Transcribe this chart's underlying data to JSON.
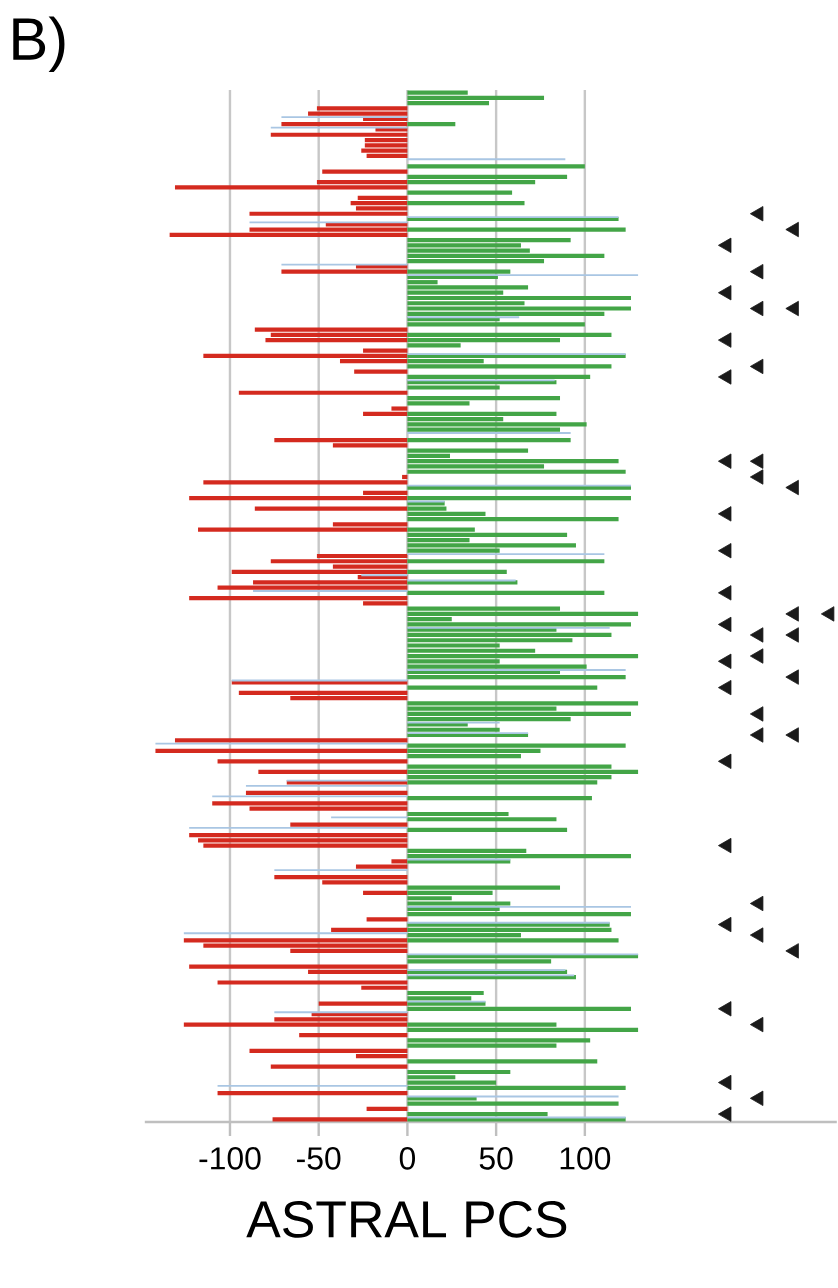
{
  "chart_data": {
    "type": "bar",
    "orientation": "horizontal",
    "title": "B)",
    "xlabel": "ASTRAL PCS",
    "xlim": [
      -148,
      242
    ],
    "xticks": [
      -100,
      -50,
      0,
      50,
      100
    ],
    "grid": "x",
    "categories": [
      null,
      null,
      null,
      null,
      null,
      null,
      null,
      null,
      null,
      null,
      null,
      null,
      null,
      null,
      null,
      null,
      null,
      null,
      null,
      null,
      null,
      null,
      null,
      null,
      null,
      null,
      null,
      null,
      null,
      null,
      null,
      null,
      null,
      null,
      null,
      null,
      null,
      null,
      null,
      null,
      null,
      null,
      null,
      null,
      null,
      null,
      null,
      null,
      null,
      null,
      null,
      null,
      null,
      null,
      null,
      null,
      null,
      null,
      null,
      null,
      null,
      null,
      null,
      null,
      null,
      null,
      null,
      null,
      null,
      null,
      null,
      null,
      null,
      null,
      null,
      null,
      null,
      null,
      null,
      null,
      null,
      null,
      null,
      null,
      null,
      null,
      null,
      null,
      null,
      null,
      null,
      null,
      null,
      null,
      null,
      null,
      null,
      null,
      null,
      null,
      null,
      null,
      null,
      null,
      null,
      null,
      null,
      null,
      null,
      null,
      null,
      null,
      null,
      null,
      null,
      null,
      null,
      null,
      null,
      null,
      null,
      null,
      null,
      null,
      null,
      null,
      null,
      null,
      null,
      null,
      null,
      null,
      null,
      null,
      null,
      null,
      null,
      null,
      null,
      null,
      null,
      null,
      null,
      null,
      null,
      null,
      null,
      null,
      null,
      null,
      null,
      null,
      null,
      null,
      null,
      null,
      null,
      null,
      null,
      null,
      null,
      null,
      null,
      null,
      null,
      null,
      null,
      null,
      null,
      null,
      null,
      null,
      null,
      null,
      null,
      null,
      null,
      null,
      null,
      null,
      null,
      null,
      null,
      null,
      null,
      null,
      null,
      null,
      null,
      null,
      null,
      null,
      null,
      null,
      null,
      null
    ],
    "series": [
      {
        "color": "#d42a1f",
        "values": [
          null,
          null,
          null,
          -51,
          -56,
          -25,
          -71,
          -18,
          -77,
          -24,
          -24,
          -26,
          -23,
          null,
          null,
          -48,
          null,
          -51,
          -131,
          null,
          -28,
          -32,
          -29,
          -89,
          null,
          -46,
          -89,
          -134,
          null,
          null,
          null,
          null,
          null,
          -29,
          -71,
          null,
          null,
          null,
          null,
          null,
          null,
          null,
          null,
          null,
          null,
          -86,
          -77,
          -80,
          null,
          -25,
          -115,
          -38,
          null,
          -30,
          null,
          null,
          null,
          -95,
          null,
          null,
          -9,
          -25,
          null,
          null,
          null,
          null,
          -75,
          -42,
          null,
          null,
          null,
          null,
          null,
          -3,
          -115,
          null,
          -25,
          -123,
          null,
          -86,
          null,
          null,
          -42,
          -118,
          null,
          null,
          null,
          null,
          -51,
          -77,
          -42,
          -99,
          -28,
          -87,
          -107,
          null,
          -123,
          -25,
          null,
          null,
          null,
          null,
          null,
          null,
          null,
          null,
          null,
          null,
          null,
          null,
          null,
          null,
          -99,
          null,
          -95,
          -66,
          null,
          null,
          null,
          null,
          null,
          null,
          null,
          -131,
          null,
          -142,
          null,
          -107,
          null,
          -84,
          null,
          -68,
          null,
          -91,
          null,
          -110,
          -89,
          null,
          null,
          -66,
          null,
          -123,
          -118,
          -115,
          null,
          null,
          -9,
          -29,
          null,
          -75,
          -48,
          null,
          -25,
          null,
          null,
          null,
          null,
          -23,
          null,
          -43,
          null,
          -126,
          -115,
          -66,
          null,
          null,
          -123,
          -56,
          null,
          -107,
          -26,
          null,
          null,
          -50,
          null,
          -54,
          -75,
          -126,
          null,
          -61,
          null,
          null,
          -89,
          -29,
          null,
          -77,
          null,
          null,
          null,
          null,
          -107,
          null,
          null,
          -23,
          null,
          -76
        ]
      },
      {
        "color": "#43a547",
        "values": [
          34,
          77,
          46,
          null,
          null,
          null,
          27,
          null,
          null,
          null,
          null,
          null,
          null,
          null,
          100,
          null,
          90,
          72,
          null,
          59,
          null,
          66,
          null,
          null,
          119,
          null,
          123,
          null,
          92,
          64,
          69,
          111,
          77,
          null,
          58,
          51,
          17,
          68,
          54,
          126,
          66,
          126,
          111,
          52,
          100,
          null,
          115,
          86,
          30,
          null,
          123,
          43,
          115,
          null,
          103,
          84,
          52,
          null,
          86,
          35,
          null,
          84,
          54,
          101,
          86,
          null,
          92,
          null,
          68,
          24,
          119,
          77,
          123,
          null,
          null,
          126,
          null,
          126,
          21,
          22,
          44,
          119,
          null,
          38,
          90,
          35,
          95,
          52,
          null,
          111,
          null,
          56,
          null,
          62,
          null,
          111,
          null,
          null,
          86,
          130,
          25,
          126,
          84,
          115,
          93,
          52,
          72,
          130,
          52,
          101,
          86,
          123,
          null,
          107,
          null,
          null,
          130,
          84,
          126,
          92,
          34,
          52,
          68,
          null,
          123,
          75,
          64,
          null,
          115,
          130,
          115,
          107,
          null,
          null,
          104,
          null,
          null,
          57,
          84,
          null,
          90,
          null,
          null,
          null,
          67,
          126,
          58,
          null,
          null,
          null,
          null,
          86,
          48,
          25,
          58,
          52,
          126,
          null,
          114,
          115,
          64,
          119,
          null,
          null,
          130,
          81,
          null,
          90,
          95,
          null,
          null,
          43,
          36,
          44,
          126,
          null,
          null,
          84,
          130,
          null,
          103,
          84,
          null,
          null,
          107,
          null,
          58,
          27,
          50,
          123,
          null,
          39,
          119,
          null,
          79,
          123
        ]
      },
      {
        "color": "#a9c6e3",
        "values": [
          null,
          null,
          null,
          null,
          null,
          -71,
          null,
          -77,
          null,
          null,
          null,
          null,
          null,
          89,
          null,
          null,
          null,
          null,
          null,
          null,
          null,
          null,
          null,
          null,
          119,
          -89,
          null,
          null,
          null,
          null,
          null,
          null,
          null,
          -71,
          null,
          130,
          null,
          null,
          null,
          null,
          null,
          null,
          null,
          63,
          null,
          null,
          null,
          null,
          null,
          null,
          123,
          null,
          null,
          null,
          null,
          83,
          null,
          null,
          null,
          null,
          null,
          null,
          null,
          null,
          null,
          92,
          null,
          null,
          null,
          null,
          null,
          null,
          null,
          null,
          null,
          126,
          null,
          null,
          21,
          null,
          null,
          null,
          null,
          null,
          null,
          null,
          null,
          null,
          111,
          null,
          null,
          null,
          -26,
          61,
          null,
          -87,
          null,
          null,
          null,
          null,
          null,
          null,
          114,
          null,
          null,
          null,
          null,
          null,
          null,
          null,
          123,
          null,
          -99,
          null,
          null,
          null,
          null,
          null,
          null,
          null,
          52,
          null,
          68,
          null,
          -142,
          null,
          null,
          null,
          null,
          null,
          null,
          -68,
          -91,
          null,
          -110,
          null,
          null,
          null,
          -43,
          null,
          -123,
          null,
          null,
          null,
          null,
          null,
          58,
          null,
          -75,
          null,
          null,
          null,
          null,
          null,
          null,
          126,
          null,
          null,
          114,
          null,
          -126,
          null,
          null,
          null,
          130,
          null,
          null,
          89,
          94,
          null,
          null,
          null,
          null,
          44,
          null,
          -75,
          null,
          null,
          null,
          null,
          null,
          null,
          null,
          null,
          null,
          null,
          null,
          null,
          null,
          -107,
          null,
          119,
          null,
          null,
          null,
          123
        ]
      },
      {
        "type": "scatter",
        "marker": "triangle",
        "color": "#1a1a1a",
        "values": [
          null,
          null,
          null,
          null,
          null,
          null,
          null,
          null,
          null,
          null,
          null,
          null,
          null,
          null,
          null,
          null,
          null,
          null,
          null,
          null,
          null,
          null,
          null,
          null,
          null,
          null,
          null,
          null,
          null,
          180,
          null,
          null,
          null,
          null,
          null,
          null,
          null,
          null,
          180,
          null,
          null,
          null,
          null,
          null,
          null,
          null,
          null,
          180,
          null,
          null,
          null,
          null,
          null,
          null,
          180,
          null,
          null,
          null,
          null,
          null,
          null,
          null,
          null,
          null,
          null,
          null,
          null,
          null,
          null,
          null,
          180,
          null,
          null,
          null,
          null,
          null,
          null,
          null,
          null,
          null,
          180,
          null,
          null,
          null,
          null,
          null,
          null,
          180,
          null,
          null,
          null,
          null,
          null,
          null,
          null,
          180,
          null,
          null,
          null,
          null,
          null,
          180,
          null,
          null,
          null,
          null,
          null,
          null,
          180,
          null,
          null,
          null,
          null,
          180,
          null,
          null,
          null,
          null,
          null,
          null,
          null,
          null,
          null,
          null,
          null,
          null,
          null,
          180,
          null,
          null,
          null,
          null,
          null,
          null,
          null,
          null,
          null,
          null,
          null,
          null,
          null,
          null,
          null,
          180,
          null,
          null,
          null,
          null,
          null,
          null,
          null,
          null,
          null,
          null,
          null,
          null,
          null,
          null,
          180,
          null,
          null,
          null,
          null,
          null,
          null,
          null,
          null,
          null,
          null,
          null,
          null,
          null,
          null,
          null,
          180,
          null,
          null,
          null,
          null,
          null,
          null,
          null,
          null,
          null,
          null,
          null,
          null,
          null,
          180,
          null,
          null,
          null,
          null,
          null,
          180,
          null
        ]
      },
      {
        "type": "scatter",
        "marker": "triangle",
        "color": "#1a1a1a",
        "values": [
          null,
          null,
          null,
          null,
          null,
          null,
          null,
          null,
          null,
          null,
          null,
          null,
          null,
          null,
          null,
          null,
          null,
          null,
          null,
          null,
          null,
          null,
          null,
          198,
          null,
          null,
          null,
          null,
          null,
          null,
          null,
          null,
          null,
          null,
          198,
          null,
          null,
          null,
          null,
          null,
          null,
          198,
          null,
          null,
          null,
          null,
          null,
          null,
          null,
          null,
          null,
          null,
          198,
          null,
          null,
          null,
          null,
          null,
          null,
          null,
          null,
          null,
          null,
          null,
          null,
          null,
          null,
          null,
          null,
          null,
          198,
          null,
          null,
          198,
          null,
          null,
          null,
          null,
          null,
          null,
          null,
          null,
          null,
          null,
          null,
          null,
          null,
          null,
          null,
          null,
          null,
          null,
          null,
          null,
          null,
          null,
          null,
          null,
          null,
          null,
          null,
          null,
          null,
          198,
          null,
          null,
          null,
          198,
          null,
          null,
          null,
          null,
          null,
          null,
          null,
          null,
          null,
          null,
          198,
          null,
          null,
          null,
          198,
          null,
          null,
          null,
          null,
          null,
          null,
          null,
          null,
          null,
          null,
          null,
          null,
          null,
          null,
          null,
          null,
          null,
          null,
          null,
          null,
          null,
          null,
          null,
          null,
          null,
          null,
          null,
          null,
          null,
          null,
          null,
          198,
          null,
          null,
          null,
          null,
          null,
          198,
          null,
          null,
          null,
          null,
          null,
          null,
          null,
          null,
          null,
          null,
          null,
          null,
          null,
          null,
          null,
          null,
          198,
          null,
          null,
          null,
          null,
          null,
          null,
          null,
          null,
          null,
          null,
          null,
          null,
          null,
          198,
          null,
          null,
          null,
          null
        ]
      },
      {
        "type": "scatter",
        "marker": "triangle",
        "color": "#1a1a1a",
        "values": [
          null,
          null,
          null,
          null,
          null,
          null,
          null,
          null,
          null,
          null,
          null,
          null,
          null,
          null,
          null,
          null,
          null,
          null,
          null,
          null,
          null,
          null,
          null,
          null,
          null,
          null,
          218,
          null,
          null,
          null,
          null,
          null,
          null,
          null,
          null,
          null,
          null,
          null,
          null,
          null,
          null,
          218,
          null,
          null,
          null,
          null,
          null,
          null,
          null,
          null,
          null,
          null,
          null,
          null,
          null,
          null,
          null,
          null,
          null,
          null,
          null,
          null,
          null,
          null,
          null,
          null,
          null,
          null,
          null,
          null,
          null,
          null,
          null,
          null,
          null,
          218,
          null,
          null,
          null,
          null,
          null,
          null,
          null,
          null,
          null,
          null,
          null,
          null,
          null,
          null,
          null,
          null,
          null,
          null,
          null,
          null,
          null,
          null,
          null,
          218,
          null,
          null,
          null,
          218,
          null,
          null,
          null,
          null,
          null,
          null,
          null,
          218,
          null,
          null,
          null,
          null,
          null,
          null,
          null,
          null,
          null,
          null,
          218,
          null,
          null,
          null,
          null,
          null,
          null,
          null,
          null,
          null,
          null,
          null,
          null,
          null,
          null,
          null,
          null,
          null,
          null,
          null,
          null,
          null,
          null,
          null,
          null,
          null,
          null,
          null,
          null,
          null,
          null,
          null,
          null,
          null,
          null,
          null,
          null,
          null,
          null,
          null,
          null,
          218,
          null,
          null,
          null,
          null,
          null,
          null,
          null,
          null,
          null,
          null,
          null,
          null,
          null,
          null,
          null,
          null,
          null,
          null,
          null,
          null,
          null,
          null,
          null,
          null,
          null,
          null,
          null,
          null,
          null,
          null,
          null,
          null
        ]
      },
      {
        "type": "scatter",
        "marker": "triangle",
        "color": "#1a1a1a",
        "values": [
          null,
          null,
          null,
          null,
          null,
          null,
          null,
          null,
          null,
          null,
          null,
          null,
          null,
          null,
          null,
          null,
          null,
          null,
          null,
          null,
          null,
          null,
          null,
          null,
          null,
          null,
          null,
          null,
          null,
          null,
          null,
          null,
          null,
          null,
          null,
          null,
          null,
          null,
          null,
          null,
          null,
          null,
          null,
          null,
          null,
          null,
          null,
          null,
          null,
          null,
          null,
          null,
          null,
          null,
          null,
          null,
          null,
          null,
          null,
          null,
          null,
          null,
          null,
          null,
          null,
          null,
          null,
          null,
          null,
          null,
          null,
          null,
          null,
          null,
          null,
          null,
          null,
          null,
          null,
          null,
          null,
          null,
          null,
          null,
          null,
          null,
          null,
          null,
          null,
          null,
          null,
          null,
          null,
          null,
          null,
          null,
          null,
          null,
          null,
          238,
          null,
          null,
          null,
          null,
          null,
          null,
          null,
          null,
          null,
          null,
          null,
          null,
          null,
          null,
          null,
          null,
          null,
          null,
          null,
          null,
          null,
          null,
          null,
          null,
          null,
          null,
          null,
          null,
          null,
          null,
          null,
          null,
          null,
          null,
          null,
          null,
          null,
          null,
          null,
          null,
          null,
          null,
          null,
          null,
          null,
          null,
          null,
          null,
          null,
          null,
          null,
          null,
          null,
          null,
          null,
          null,
          null,
          null,
          null,
          null,
          null,
          null,
          null,
          null,
          null,
          null,
          null,
          null,
          null,
          null,
          null,
          null,
          null,
          null,
          null,
          null,
          null,
          null,
          null,
          null,
          null,
          null,
          null,
          null,
          null,
          null,
          null,
          null,
          null,
          null,
          null,
          null,
          null,
          null,
          null,
          null
        ]
      }
    ]
  }
}
